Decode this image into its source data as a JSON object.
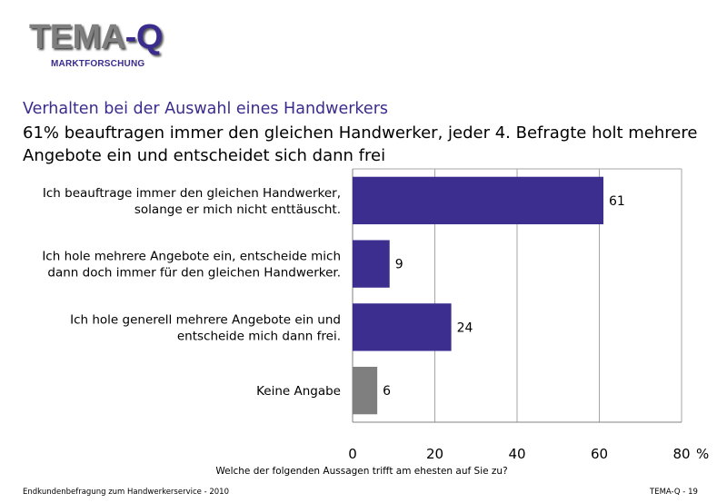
{
  "logo": {
    "main": "TEMA",
    "dash": "-",
    "q": "Q",
    "sub": "MARKTFORSCHUNG"
  },
  "subtitle": "Verhalten bei der Auswahl eines Handwerkers",
  "headline": "61% beauftragen immer den gleichen Handwerker, jeder 4. Befragte holt mehrere Angebote ein und entscheidet sich dann frei",
  "chart_data": {
    "type": "bar",
    "orientation": "horizontal",
    "categories": [
      [
        "Ich beauftrage immer den gleichen Handwerker,",
        "solange er mich nicht enttäuscht."
      ],
      [
        "Ich hole mehrere Angebote ein, entscheide mich",
        "dann doch immer für den gleichen Handwerker."
      ],
      [
        "Ich hole generell mehrere Angebote ein und",
        "entscheide mich dann frei."
      ],
      [
        "Keine Angabe"
      ]
    ],
    "values": [
      61,
      9,
      24,
      6
    ],
    "bar_colors": [
      "#3b2e8f",
      "#3b2e8f",
      "#3b2e8f",
      "#7f7f7f"
    ],
    "xlim": [
      0,
      80
    ],
    "xticks": [
      0,
      20,
      40,
      60,
      80
    ],
    "x_unit": "%",
    "xlabel": "Welche der folgenden Aussagen trifft am ehesten auf Sie zu?",
    "grid": true
  },
  "footer": {
    "left": "Endkundenbefragung zum Handwerkerservice - 2010",
    "right": "TEMA-Q - 19"
  }
}
